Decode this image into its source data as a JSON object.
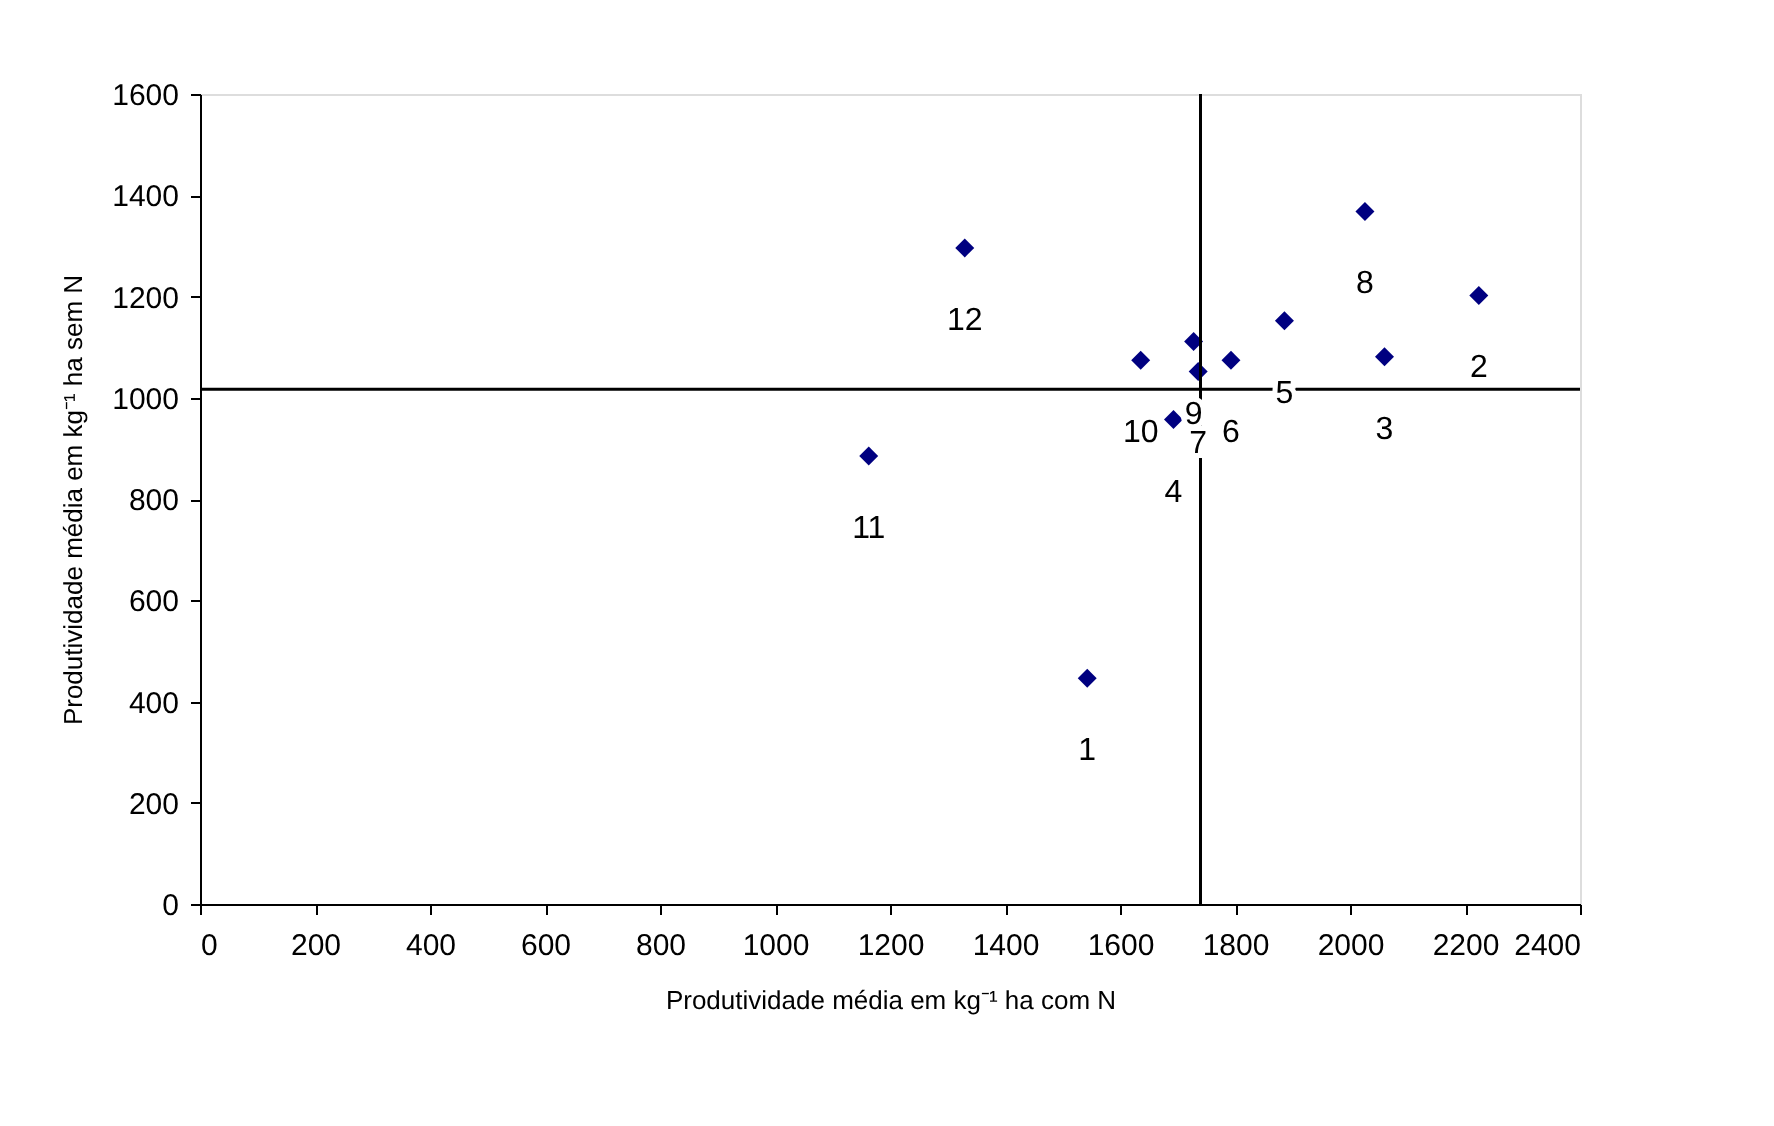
{
  "chart_data": {
    "type": "scatter",
    "xlabel": "Produtividade média em kg⁻¹ ha com N",
    "ylabel": "Produtividade média em kg⁻¹ ha sem N",
    "x": [
      1543,
      2224,
      2060,
      1693,
      1886,
      1793,
      1736,
      2026,
      1728,
      1636,
      1163,
      1330
    ],
    "series": [
      {
        "color": "#000080",
        "values": [
          446,
          1202,
          1081,
          957,
          1152,
          1074,
          1052,
          1368,
          1111,
          1074,
          885,
          1296
        ]
      }
    ],
    "annotations": [
      {
        "text": "1",
        "x": 1543,
        "y": 446
      },
      {
        "text": "2",
        "x": 2224,
        "y": 1202
      },
      {
        "text": "3",
        "x": 2060,
        "y": 1081
      },
      {
        "text": "4",
        "x": 1693,
        "y": 957
      },
      {
        "text": "5",
        "x": 1886,
        "y": 1152
      },
      {
        "text": "6",
        "x": 1793,
        "y": 1074
      },
      {
        "text": "7",
        "x": 1736,
        "y": 1052
      },
      {
        "text": "8",
        "x": 2026,
        "y": 1368
      },
      {
        "text": "9",
        "x": 1728,
        "y": 1111
      },
      {
        "text": "10",
        "x": 1636,
        "y": 1074
      },
      {
        "text": "11",
        "x": 1163,
        "y": 885
      },
      {
        "text": "12",
        "x": 1330,
        "y": 1296
      }
    ],
    "ref_lines": [
      {
        "axis": "x",
        "value": 1740,
        "color": "#000000"
      },
      {
        "axis": "y",
        "value": 1017,
        "color": "#000000"
      }
    ],
    "xlim": [
      0,
      2400
    ],
    "xticks": [
      0,
      200,
      400,
      600,
      800,
      1000,
      1200,
      1400,
      1600,
      1800,
      2000,
      2200,
      2400
    ],
    "ylim": [
      0,
      1600
    ],
    "yticks": [
      0,
      200,
      400,
      600,
      800,
      1000,
      1200,
      1400,
      1600
    ],
    "grid": false,
    "marker": "diamond"
  }
}
